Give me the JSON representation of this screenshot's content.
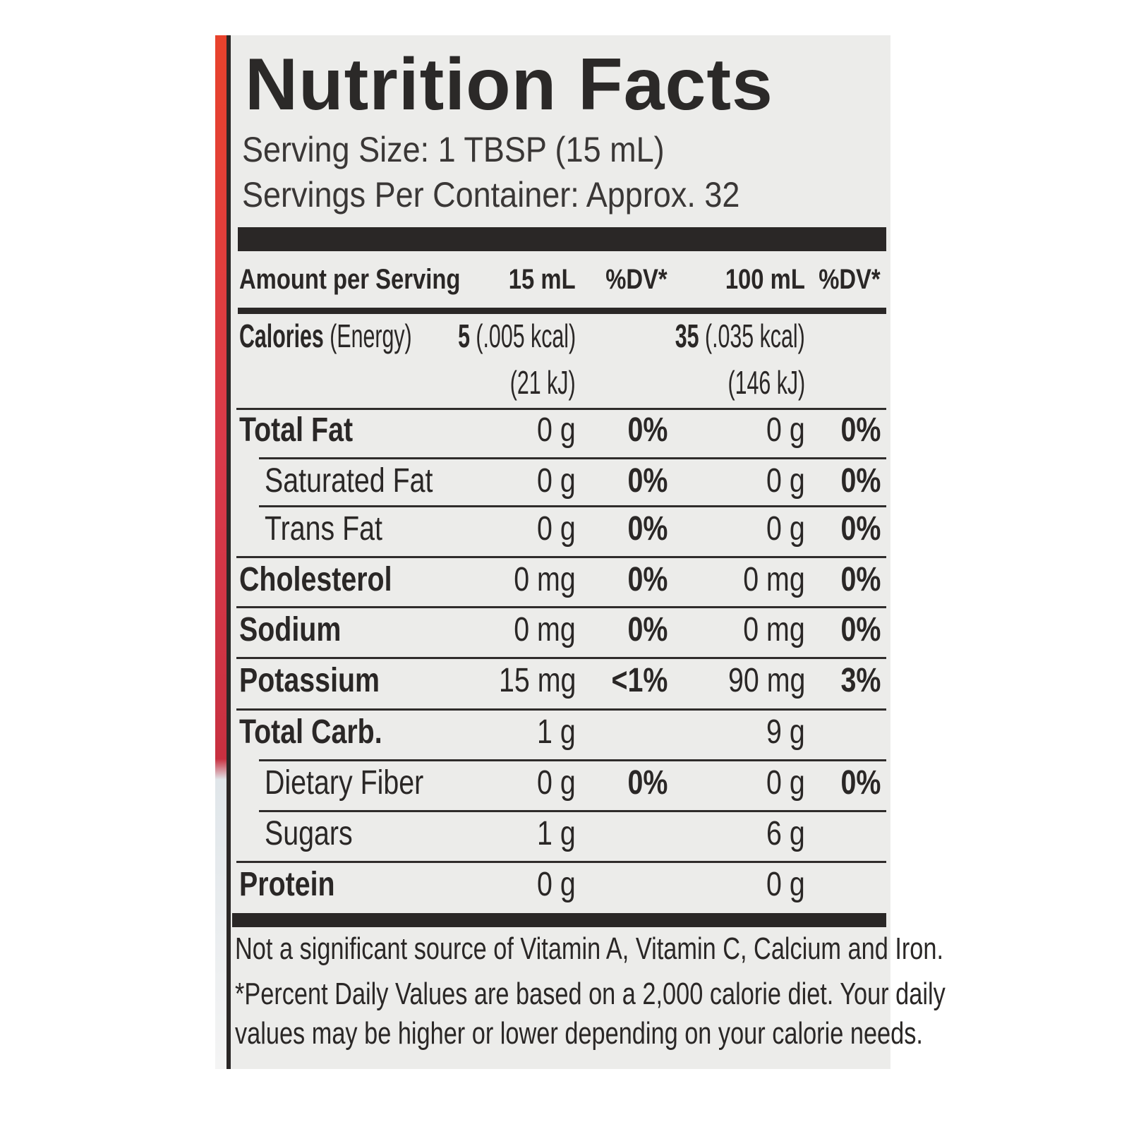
{
  "title": "Nutrition Facts",
  "serving_size": "Serving Size: 1 TBSP (15 mL)",
  "servings_per_container": "Servings Per Container: Approx. 32",
  "header": {
    "amount": "Amount per Serving",
    "col1": "15 mL",
    "dv1": "%DV*",
    "col2": "100 mL",
    "dv2": "%DV*"
  },
  "calories": {
    "label": "Calories",
    "sub": "(Energy)",
    "v1": "5",
    "v1_kcal": "(.005 kcal)",
    "v1_kj": "(21 kJ)",
    "v2": "35",
    "v2_kcal": "(.035 kcal)",
    "v2_kj": "(146 kJ)"
  },
  "rows": [
    {
      "label": "Total Fat",
      "v1": "0 g",
      "dv1": "0%",
      "v2": "0 g",
      "dv2": "0%"
    },
    {
      "label": "Saturated Fat",
      "v1": "0 g",
      "dv1": "0%",
      "v2": "0 g",
      "dv2": "0%"
    },
    {
      "label": "Trans Fat",
      "v1": "0 g",
      "dv1": "0%",
      "v2": "0 g",
      "dv2": "0%"
    },
    {
      "label": "Cholesterol",
      "v1": "0 mg",
      "dv1": "0%",
      "v2": "0 mg",
      "dv2": "0%"
    },
    {
      "label": "Sodium",
      "v1": "0 mg",
      "dv1": "0%",
      "v2": "0 mg",
      "dv2": "0%"
    },
    {
      "label": "Potassium",
      "v1": "15 mg",
      "dv1": "<1%",
      "v2": "90 mg",
      "dv2": "3%"
    },
    {
      "label": "Total Carb.",
      "v1": "1 g",
      "dv1": "",
      "v2": "9 g",
      "dv2": ""
    },
    {
      "label": "Dietary Fiber",
      "v1": "0 g",
      "dv1": "0%",
      "v2": "0 g",
      "dv2": "0%"
    },
    {
      "label": "Sugars",
      "v1": "1 g",
      "dv1": "",
      "v2": "6 g",
      "dv2": ""
    },
    {
      "label": "Protein",
      "v1": "0 g",
      "dv1": "",
      "v2": "0 g",
      "dv2": ""
    }
  ],
  "footnote1": "Not a significant source of Vitamin A, Vitamin C, Calcium and Iron.",
  "footnote2a": "*Percent Daily Values are based on a 2,000 calorie diet. Your daily",
  "footnote2b": "values may be higher or lower depending on your calorie needs."
}
